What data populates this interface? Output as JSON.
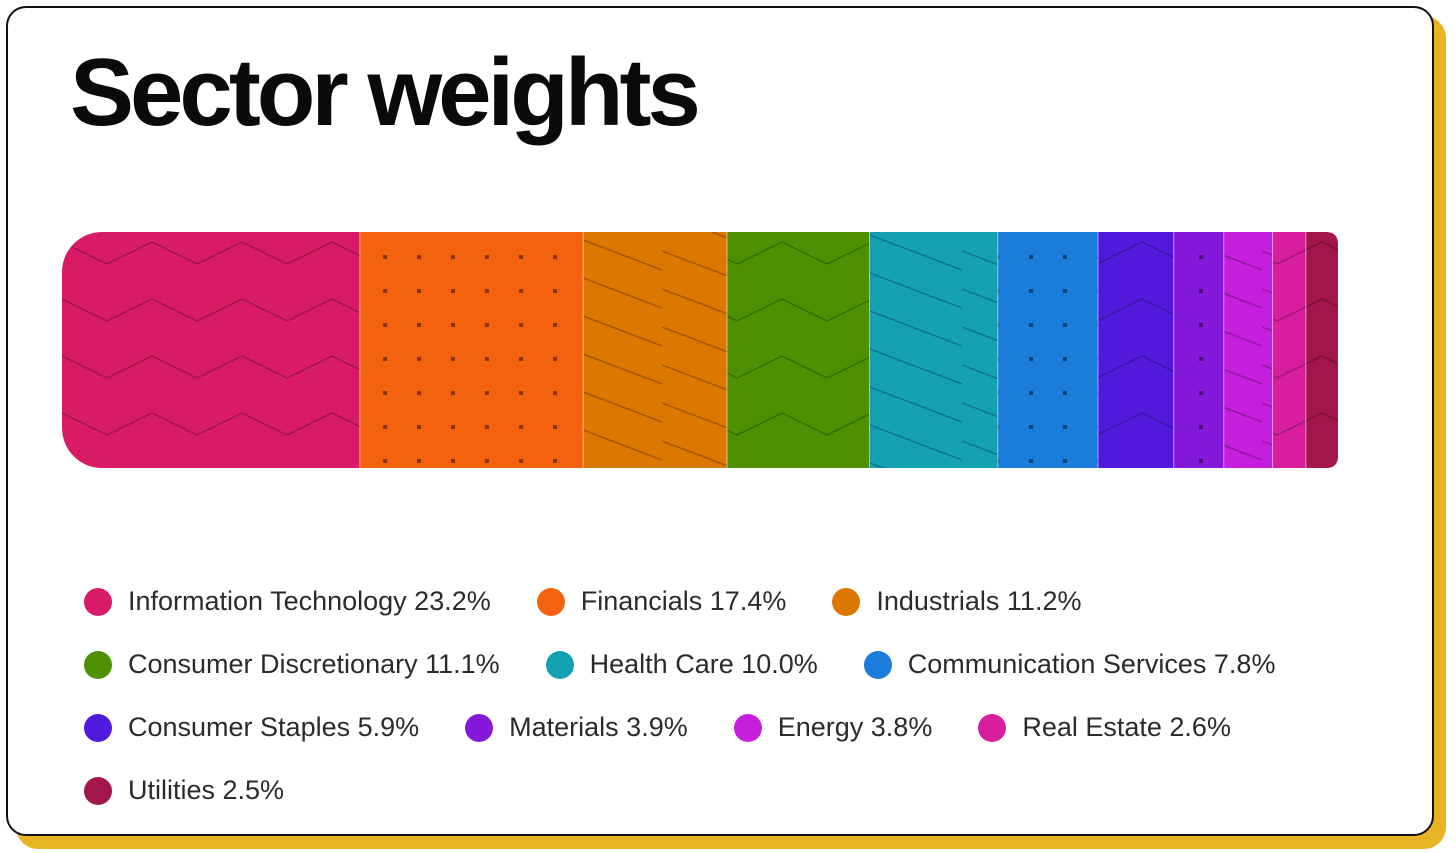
{
  "title": "Sector weights",
  "chart_data": {
    "type": "bar",
    "orientation": "horizontal-stacked-100",
    "title": "Sector weights",
    "unit": "%",
    "legend_position": "bottom",
    "series": [
      {
        "name": "Information Technology",
        "value": 23.2,
        "color": "#d91a66",
        "pattern": "zigzag"
      },
      {
        "name": "Financials",
        "value": 17.4,
        "color": "#f5620f",
        "pattern": "dots"
      },
      {
        "name": "Industrials",
        "value": 11.2,
        "color": "#dc7800",
        "pattern": "diagonal"
      },
      {
        "name": "Consumer Discretionary",
        "value": 11.1,
        "color": "#4f9000",
        "pattern": "zigzag"
      },
      {
        "name": "Health Care",
        "value": 10.0,
        "color": "#14a2b3",
        "pattern": "diagonal"
      },
      {
        "name": "Communication Services",
        "value": 7.8,
        "color": "#1a7ddc",
        "pattern": "dots"
      },
      {
        "name": "Consumer Staples",
        "value": 5.9,
        "color": "#5019dc",
        "pattern": "zigzag"
      },
      {
        "name": "Materials",
        "value": 3.9,
        "color": "#8419dc",
        "pattern": "dots"
      },
      {
        "name": "Energy",
        "value": 3.8,
        "color": "#c51edc",
        "pattern": "diagonal"
      },
      {
        "name": "Real Estate",
        "value": 2.6,
        "color": "#d81e9e",
        "pattern": "zigzag"
      },
      {
        "name": "Utilities",
        "value": 2.5,
        "color": "#a3164c",
        "pattern": "zigzag"
      }
    ]
  },
  "legend": {
    "rows": [
      [
        {
          "label": "Information Technology 23.2%",
          "color": "#d91a66"
        },
        {
          "label": "Financials 17.4%",
          "color": "#f5620f"
        },
        {
          "label": "Industrials 11.2%",
          "color": "#dc7800"
        }
      ],
      [
        {
          "label": "Consumer Discretionary 11.1%",
          "color": "#4f9000"
        },
        {
          "label": "Health Care 10.0%",
          "color": "#14a2b3"
        },
        {
          "label": "Communication Services 7.8%",
          "color": "#1a7ddc"
        }
      ],
      [
        {
          "label": "Consumer Staples 5.9%",
          "color": "#5019dc"
        },
        {
          "label": "Materials 3.9%",
          "color": "#8419dc"
        },
        {
          "label": "Energy 3.8%",
          "color": "#c51edc"
        },
        {
          "label": "Real Estate 2.6%",
          "color": "#d81e9e"
        }
      ],
      [
        {
          "label": "Utilities 2.5%",
          "color": "#a3164c"
        }
      ]
    ]
  }
}
